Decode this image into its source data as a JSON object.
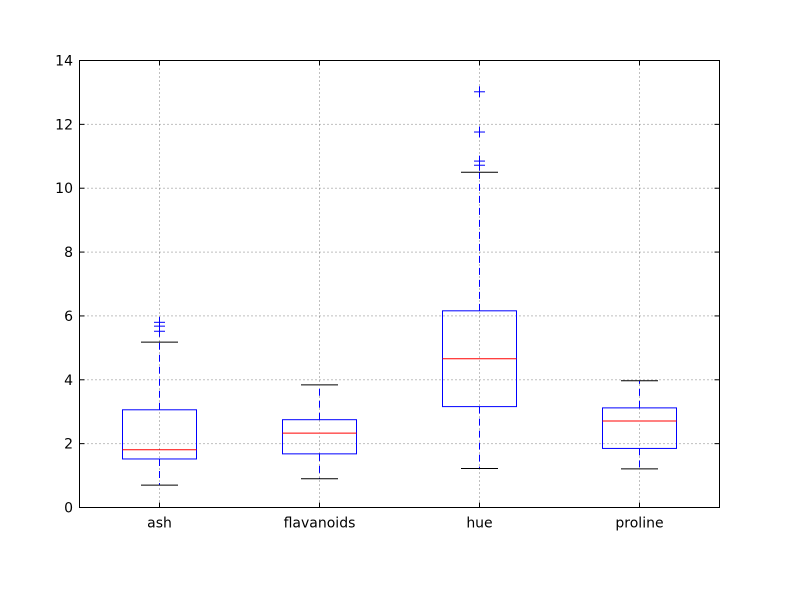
{
  "figure": {
    "background": "#ffffff",
    "title": ""
  },
  "chart_data": {
    "type": "boxplot",
    "title": "",
    "xlabel": "",
    "ylabel": "",
    "categories": [
      "ash",
      "flavanoids",
      "hue",
      "proline"
    ],
    "series": [
      {
        "label": "ash",
        "whislo": 0.7,
        "q1": 1.52,
        "med": 1.81,
        "q3": 3.06,
        "whishi": 5.18,
        "fliers": [
          5.52,
          5.68,
          5.8
        ]
      },
      {
        "label": "flavanoids",
        "whislo": 0.9,
        "q1": 1.68,
        "med": 2.33,
        "q3": 2.75,
        "whishi": 3.84,
        "fliers": []
      },
      {
        "label": "hue",
        "whislo": 1.22,
        "q1": 3.16,
        "med": 4.66,
        "q3": 6.16,
        "whishi": 10.5,
        "fliers": [
          10.72,
          10.85,
          11.76,
          13.02
        ]
      },
      {
        "label": "proline",
        "whislo": 1.21,
        "q1": 1.85,
        "med": 2.71,
        "q3": 3.12,
        "whishi": 3.97,
        "fliers": []
      }
    ],
    "ylim": [
      0,
      14
    ],
    "yticks": [
      0,
      2,
      4,
      6,
      8,
      10,
      12,
      14
    ],
    "xlim": [
      0.5,
      4.5
    ],
    "grid": true,
    "legend": null,
    "colors": {
      "box": "#0000ff",
      "median": "#ff0000",
      "whisker": "#0000ff",
      "cap": "#000000",
      "flier": "#0000ff",
      "grid": "#808080",
      "spine": "#000000",
      "tick_label": "#000000",
      "background": "#ffffff"
    }
  }
}
